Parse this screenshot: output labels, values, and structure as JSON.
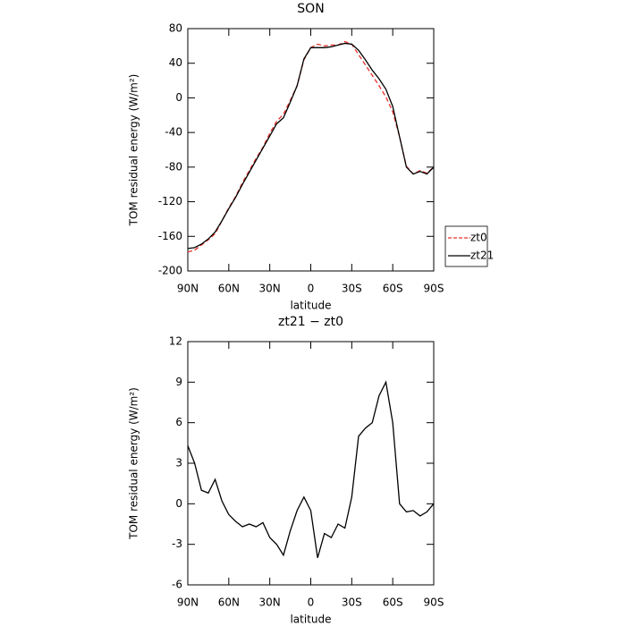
{
  "chart_data": [
    {
      "type": "line",
      "title": "SON",
      "xlabel": "latitude",
      "ylabel": "TOM residual energy (W/m²)",
      "x": [
        90,
        85,
        80,
        75,
        70,
        65,
        60,
        55,
        50,
        45,
        40,
        35,
        30,
        25,
        20,
        15,
        10,
        5,
        0,
        -5,
        -10,
        -15,
        -20,
        -25,
        -30,
        -35,
        -40,
        -45,
        -50,
        -55,
        -60,
        -65,
        -70,
        -75,
        -80,
        -85,
        -90
      ],
      "xlim": [
        90,
        -90
      ],
      "xticks": [
        {
          "value": 90,
          "label": "90N"
        },
        {
          "value": 60,
          "label": "60N"
        },
        {
          "value": 30,
          "label": "30N"
        },
        0,
        {
          "value": -30,
          "label": "30S"
        },
        {
          "value": -60,
          "label": "60S"
        },
        {
          "value": -90,
          "label": "90S"
        }
      ],
      "ylim": [
        -200,
        80
      ],
      "yticks": [
        -200,
        -160,
        -120,
        -80,
        -40,
        0,
        40,
        80
      ],
      "legend": "right",
      "series": [
        {
          "name": "zt0",
          "color": "#e8302a",
          "dash": true,
          "values": [
            -178,
            -176,
            -170,
            -164,
            -157,
            -142,
            -127,
            -114,
            -98,
            -84,
            -70,
            -57,
            -41,
            -27,
            -19,
            -3,
            14,
            44,
            58,
            62,
            60,
            61,
            61,
            65,
            62,
            50,
            38,
            26,
            14,
            1,
            -16,
            -45,
            -79,
            -88,
            -84,
            -87,
            -80
          ]
        },
        {
          "name": "zt21",
          "color": "#000000",
          "dash": false,
          "values": [
            -174,
            -173,
            -169,
            -163,
            -155,
            -142,
            -128,
            -115,
            -100,
            -86,
            -72,
            -58,
            -44,
            -30,
            -23,
            -5,
            14,
            45,
            58,
            58,
            58,
            59,
            61,
            63,
            62,
            55,
            44,
            32,
            22,
            10,
            -10,
            -45,
            -80,
            -88,
            -85,
            -88,
            -80
          ]
        }
      ]
    },
    {
      "type": "line",
      "title": "zt21 − zt0",
      "xlabel": "latitude",
      "ylabel": "TOM residual energy (W/m²)",
      "x": [
        90,
        85,
        80,
        75,
        70,
        65,
        60,
        55,
        50,
        45,
        40,
        35,
        30,
        25,
        20,
        15,
        10,
        5,
        0,
        -5,
        -10,
        -15,
        -20,
        -25,
        -30,
        -35,
        -40,
        -45,
        -50,
        -55,
        -60,
        -65,
        -70,
        -75,
        -80,
        -85,
        -90
      ],
      "xlim": [
        90,
        -90
      ],
      "xticks": [
        {
          "value": 90,
          "label": "90N"
        },
        {
          "value": 60,
          "label": "60N"
        },
        {
          "value": 30,
          "label": "30N"
        },
        0,
        {
          "value": -30,
          "label": "30S"
        },
        {
          "value": -60,
          "label": "60S"
        },
        {
          "value": -90,
          "label": "90S"
        }
      ],
      "ylim": [
        -6,
        12
      ],
      "yticks": [
        -6,
        -3,
        0,
        3,
        6,
        9,
        12
      ],
      "series": [
        {
          "color": "#000000",
          "values": [
            4.3,
            3.0,
            1.0,
            0.8,
            1.8,
            0.2,
            -0.8,
            -1.3,
            -1.7,
            -1.5,
            -1.7,
            -1.4,
            -2.5,
            -3.0,
            -3.8,
            -2.0,
            -0.5,
            0.5,
            -0.5,
            -4.0,
            -2.2,
            -2.5,
            -1.5,
            -1.8,
            0.5,
            5.0,
            5.6,
            6.0,
            8.0,
            9.0,
            6.0,
            0.0,
            -0.6,
            -0.5,
            -0.9,
            -0.6,
            0.0
          ]
        }
      ]
    }
  ]
}
